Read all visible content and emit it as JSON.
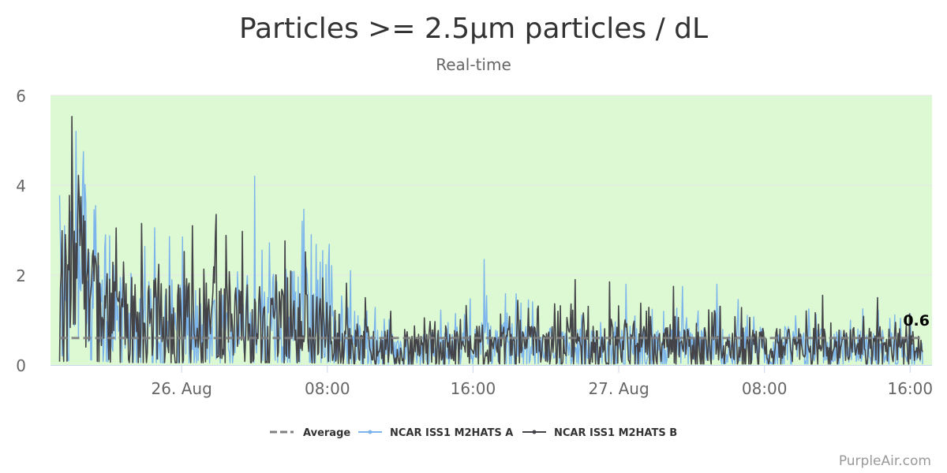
{
  "chart_data": {
    "type": "line",
    "title": "Particles >= 2.5µm particles / dL",
    "subtitle": "Real-time",
    "ylim": [
      0,
      6
    ],
    "yticks": [
      0,
      2,
      4,
      6
    ],
    "x_tick_labels": [
      "26. Aug",
      "08:00",
      "16:00",
      "27. Aug",
      "08:00",
      "16:00"
    ],
    "x_tick_hours": [
      0,
      8,
      16,
      24,
      32,
      40
    ],
    "xlim_hours": [
      -7.2,
      41.2
    ],
    "grid": true,
    "legend_position": "bottom",
    "plot_background": "#dcf9d3",
    "series": [
      {
        "name": "Average",
        "style": "dashed",
        "color": "#808080",
        "value": 0.6
      },
      {
        "name": "NCAR ISS1 M2HATS A",
        "style": "line",
        "color": "#7cb5ec",
        "trend": [
          [
            -6.7,
            1.6
          ],
          [
            -6.0,
            2.0
          ],
          [
            -5.2,
            2.5
          ],
          [
            -4.4,
            1.6
          ],
          [
            -3.2,
            1.2
          ],
          [
            -1.0,
            1.0
          ],
          [
            2.0,
            0.9
          ],
          [
            5.0,
            1.1
          ],
          [
            7.0,
            1.2
          ],
          [
            8.5,
            0.9
          ],
          [
            10.5,
            0.45
          ],
          [
            13.0,
            0.35
          ],
          [
            16.0,
            0.5
          ],
          [
            18.0,
            0.55
          ],
          [
            20.5,
            0.45
          ],
          [
            24.0,
            0.45
          ],
          [
            28.0,
            0.5
          ],
          [
            31.0,
            0.5
          ],
          [
            35.0,
            0.45
          ],
          [
            38.5,
            0.45
          ],
          [
            40.7,
            0.35
          ]
        ],
        "peaks": [
          [
            -5.8,
            5.2
          ],
          [
            -5.4,
            4.75
          ],
          [
            -3.6,
            3.0
          ],
          [
            -1.5,
            3.05
          ],
          [
            4.0,
            4.2
          ],
          [
            6.6,
            3.2
          ],
          [
            7.1,
            2.9
          ],
          [
            16.6,
            2.35
          ],
          [
            24.4,
            1.8
          ],
          [
            27.5,
            1.75
          ],
          [
            29.4,
            1.8
          ]
        ]
      },
      {
        "name": "NCAR ISS1 M2HATS B",
        "style": "line",
        "color": "#434348",
        "trend": [
          [
            -6.7,
            1.5
          ],
          [
            -6.0,
            1.9
          ],
          [
            -5.3,
            2.2
          ],
          [
            -4.4,
            1.4
          ],
          [
            -3.2,
            1.1
          ],
          [
            -1.0,
            1.0
          ],
          [
            2.0,
            1.0
          ],
          [
            5.0,
            1.0
          ],
          [
            7.0,
            0.9
          ],
          [
            8.5,
            0.7
          ],
          [
            10.5,
            0.45
          ],
          [
            13.0,
            0.4
          ],
          [
            16.0,
            0.5
          ],
          [
            18.0,
            0.5
          ],
          [
            20.5,
            0.5
          ],
          [
            24.0,
            0.5
          ],
          [
            28.0,
            0.45
          ],
          [
            31.0,
            0.45
          ],
          [
            35.0,
            0.45
          ],
          [
            38.5,
            0.45
          ],
          [
            40.7,
            0.35
          ]
        ],
        "peaks": [
          [
            -5.6,
            3.65
          ],
          [
            -5.3,
            3.2
          ],
          [
            -2.2,
            3.15
          ],
          [
            0.6,
            3.1
          ],
          [
            1.9,
            3.35
          ],
          [
            10.1,
            1.5
          ],
          [
            21.6,
            1.9
          ],
          [
            23.5,
            1.85
          ],
          [
            27.0,
            1.75
          ],
          [
            35.2,
            1.55
          ],
          [
            38.2,
            1.5
          ]
        ]
      }
    ],
    "last_value_label": "0.6",
    "credit": "PurpleAir.com"
  }
}
